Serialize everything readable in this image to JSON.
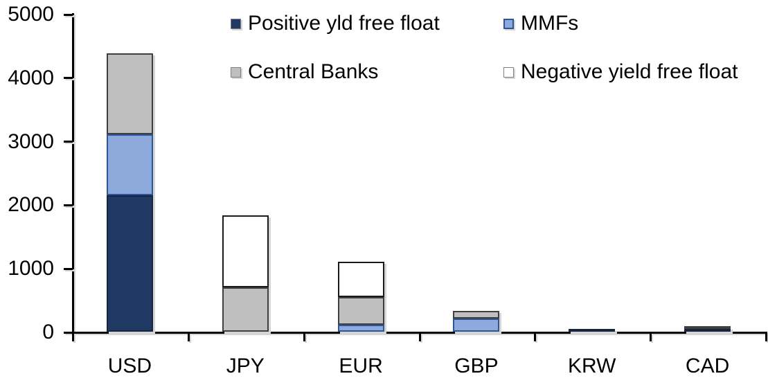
{
  "chart_data": {
    "type": "bar",
    "stacked": true,
    "title": "",
    "xlabel": "",
    "ylabel": "",
    "categories": [
      "USD",
      "JPY",
      "EUR",
      "GBP",
      "KRW",
      "CAD"
    ],
    "series": [
      {
        "name": "Positive yld free float",
        "fill": "#1F3864",
        "border": "#16243F",
        "values": [
          2150,
          0,
          0,
          0,
          40,
          40
        ]
      },
      {
        "name": "MMFs",
        "fill": "#8EA9DB",
        "border": "#2E5597",
        "values": [
          950,
          0,
          110,
          210,
          0,
          0
        ]
      },
      {
        "name": "Central Banks",
        "fill": "#BFBFBF",
        "border": "#3F3F3F",
        "values": [
          1280,
          700,
          430,
          120,
          0,
          20
        ]
      },
      {
        "name": "Negative yield free float",
        "fill": "#FFFFFF",
        "border": "#1A1A1A",
        "values": [
          0,
          1130,
          560,
          0,
          0,
          0
        ]
      }
    ],
    "stack_totals": [
      4380,
      1830,
      1100,
      330,
      40,
      60
    ],
    "ylim": [
      0,
      5000
    ],
    "ytick_step": 1000,
    "ytick_labels": [
      "0",
      "1000",
      "2000",
      "3000",
      "4000",
      "5000"
    ],
    "grid": false,
    "legend_position": "top-inside",
    "legend_order": [
      "Positive yld free float",
      "MMFs",
      "Central Banks",
      "Negative yield free float"
    ],
    "axis_color": "#000000",
    "background_color": "#FFFFFF"
  }
}
